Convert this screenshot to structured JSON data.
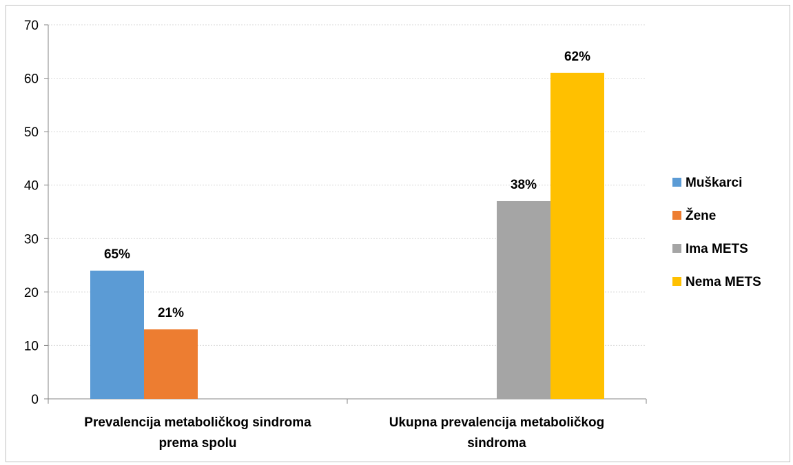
{
  "chart_data": {
    "type": "bar",
    "title": "",
    "xlabel": "",
    "ylabel": "",
    "ylim": [
      0,
      70
    ],
    "yticks": [
      0,
      10,
      20,
      30,
      40,
      50,
      60,
      70
    ],
    "grid": true,
    "legend_position": "right",
    "categories": [
      [
        "Prevalencija metaboličkog sindroma",
        "prema spolu"
      ],
      [
        "Ukupna prevalencija metaboličkog",
        "sindroma"
      ]
    ],
    "series": [
      {
        "name": "Muškarci",
        "color": "#5b9bd5",
        "category": 0,
        "slot": 0,
        "value": 24,
        "label": "65%"
      },
      {
        "name": "Žene",
        "color": "#ed7d31",
        "category": 0,
        "slot": 1,
        "value": 13,
        "label": "21%"
      },
      {
        "name": "Ima METS",
        "color": "#a5a5a5",
        "category": 1,
        "slot": 2,
        "value": 37,
        "label": "38%"
      },
      {
        "name": "Nema METS",
        "color": "#ffc000",
        "category": 1,
        "slot": 3,
        "value": 61,
        "label": "62%"
      }
    ]
  }
}
